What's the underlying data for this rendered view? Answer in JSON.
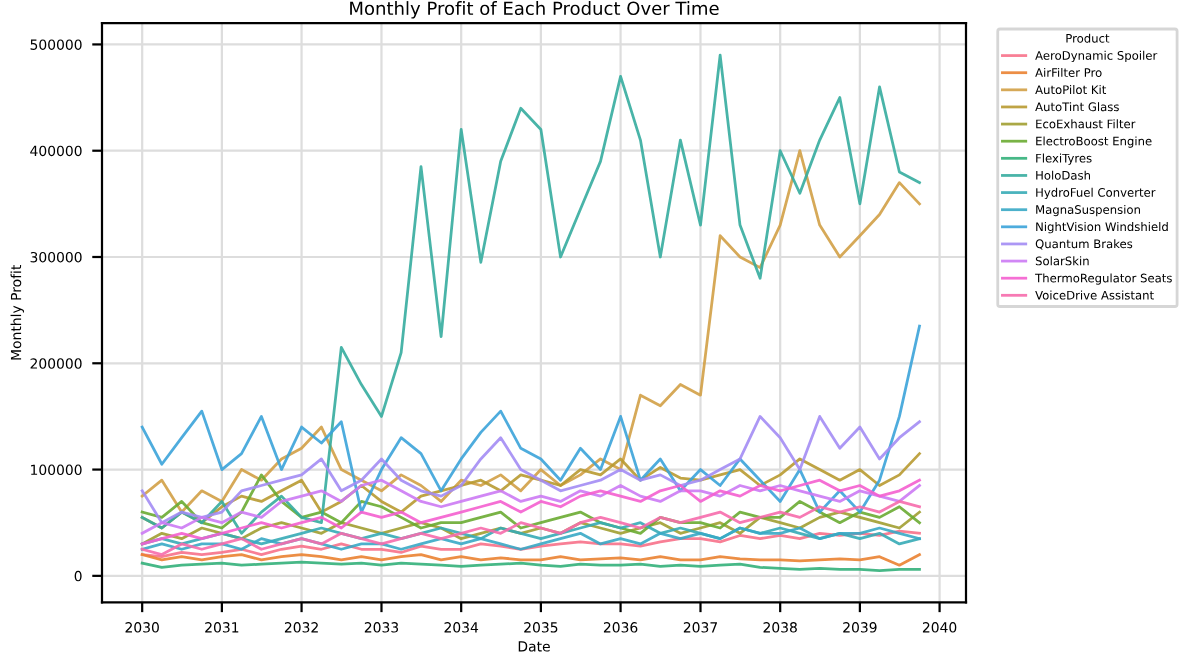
{
  "chart_data": {
    "type": "line",
    "title": "Monthly Profit of Each Product Over Time",
    "xlabel": "Date",
    "ylabel": "Monthly Profit",
    "legend_title": "Product",
    "legend": "right",
    "grid": true,
    "line_style": "solid",
    "x": [
      "2030-01",
      "2030-04",
      "2030-07",
      "2030-10",
      "2031-01",
      "2031-04",
      "2031-07",
      "2031-10",
      "2032-01",
      "2032-04",
      "2032-07",
      "2032-10",
      "2033-01",
      "2033-04",
      "2033-07",
      "2033-10",
      "2034-01",
      "2034-04",
      "2034-07",
      "2034-10",
      "2035-01",
      "2035-04",
      "2035-07",
      "2035-10",
      "2036-01",
      "2036-04",
      "2036-07",
      "2036-10",
      "2037-01",
      "2037-04",
      "2037-07",
      "2037-10",
      "2038-01",
      "2038-04",
      "2038-07",
      "2038-10",
      "2039-01",
      "2039-04",
      "2039-07",
      "2039-10"
    ],
    "xlim": [
      "2029-07",
      "2040-05"
    ],
    "xticks": [
      {
        "value": "2030-01",
        "label": "2030"
      },
      {
        "value": "2031-01",
        "label": "2031"
      },
      {
        "value": "2032-01",
        "label": "2032"
      },
      {
        "value": "2033-01",
        "label": "2033"
      },
      {
        "value": "2034-01",
        "label": "2034"
      },
      {
        "value": "2035-01",
        "label": "2035"
      },
      {
        "value": "2036-01",
        "label": "2036"
      },
      {
        "value": "2037-01",
        "label": "2037"
      },
      {
        "value": "2038-01",
        "label": "2038"
      },
      {
        "value": "2039-01",
        "label": "2039"
      },
      {
        "value": "2040-01",
        "label": "2040"
      }
    ],
    "ylim": [
      -25000,
      520000
    ],
    "yticks": [
      0,
      100000,
      200000,
      300000,
      400000,
      500000
    ],
    "series": [
      {
        "name": "AeroDynamic Spoiler",
        "color": "#f77189",
        "values": [
          20000,
          18000,
          22000,
          20000,
          22000,
          25000,
          20000,
          25000,
          28000,
          25000,
          30000,
          25000,
          25000,
          22000,
          28000,
          25000,
          25000,
          30000,
          28000,
          25000,
          28000,
          30000,
          32000,
          30000,
          30000,
          28000,
          32000,
          35000,
          35000,
          32000,
          38000,
          35000,
          38000,
          35000,
          40000,
          38000,
          40000,
          38000,
          42000,
          40000
        ]
      },
      {
        "name": "AirFilter Pro",
        "color": "#ea8231",
        "values": [
          20000,
          15000,
          18000,
          15000,
          18000,
          20000,
          15000,
          18000,
          20000,
          18000,
          15000,
          18000,
          15000,
          18000,
          20000,
          15000,
          18000,
          15000,
          17000,
          15000,
          15000,
          18000,
          15000,
          16000,
          17000,
          15000,
          18000,
          15000,
          15000,
          18000,
          16000,
          15000,
          15000,
          14000,
          15000,
          16000,
          15000,
          18000,
          10000,
          20000
        ]
      },
      {
        "name": "AutoPilot Kit",
        "color": "#d1a046",
        "values": [
          75000,
          90000,
          60000,
          80000,
          70000,
          100000,
          90000,
          110000,
          120000,
          140000,
          100000,
          90000,
          80000,
          95000,
          85000,
          70000,
          90000,
          85000,
          95000,
          80000,
          100000,
          85000,
          95000,
          110000,
          100000,
          170000,
          160000,
          180000,
          170000,
          320000,
          300000,
          290000,
          330000,
          400000,
          330000,
          300000,
          320000,
          340000,
          370000,
          350000
        ]
      },
      {
        "name": "AutoTint Glass",
        "color": "#b89a31",
        "values": [
          55000,
          45000,
          60000,
          50000,
          65000,
          75000,
          70000,
          80000,
          90000,
          60000,
          70000,
          85000,
          70000,
          60000,
          75000,
          80000,
          85000,
          90000,
          80000,
          95000,
          90000,
          85000,
          100000,
          95000,
          110000,
          90000,
          102000,
          92000,
          90000,
          95000,
          100000,
          85000,
          95000,
          110000,
          100000,
          90000,
          100000,
          85000,
          95000,
          115000
        ]
      },
      {
        "name": "EcoExhaust Filter",
        "color": "#a19f31",
        "values": [
          30000,
          40000,
          35000,
          45000,
          40000,
          35000,
          45000,
          50000,
          45000,
          40000,
          50000,
          45000,
          40000,
          45000,
          50000,
          45000,
          35000,
          40000,
          45000,
          40000,
          45000,
          40000,
          50000,
          45000,
          40000,
          45000,
          50000,
          40000,
          45000,
          50000,
          40000,
          55000,
          50000,
          45000,
          55000,
          60000,
          55000,
          50000,
          45000,
          60000
        ]
      },
      {
        "name": "ElectroBoost Engine",
        "color": "#6aab32",
        "values": [
          60000,
          55000,
          70000,
          50000,
          45000,
          60000,
          95000,
          70000,
          55000,
          60000,
          50000,
          70000,
          65000,
          55000,
          45000,
          50000,
          50000,
          55000,
          60000,
          45000,
          50000,
          55000,
          60000,
          50000,
          45000,
          40000,
          55000,
          50000,
          50000,
          45000,
          60000,
          55000,
          55000,
          70000,
          60000,
          50000,
          60000,
          55000,
          65000,
          50000
        ]
      },
      {
        "name": "FlexiTyres",
        "color": "#33b07a",
        "values": [
          12000,
          8000,
          10000,
          11000,
          12000,
          10000,
          11000,
          12000,
          13000,
          12000,
          11000,
          12000,
          10000,
          12000,
          11000,
          10000,
          9000,
          10000,
          11000,
          12000,
          10000,
          9000,
          11000,
          10000,
          10000,
          11000,
          9000,
          10000,
          9000,
          10000,
          11000,
          8000,
          7000,
          6000,
          7000,
          6000,
          6000,
          5000,
          6000,
          6000
        ]
      },
      {
        "name": "HoloDash",
        "color": "#35ac9e",
        "values": [
          55000,
          45000,
          60000,
          50000,
          70000,
          40000,
          60000,
          75000,
          55000,
          50000,
          215000,
          180000,
          150000,
          210000,
          385000,
          225000,
          420000,
          295000,
          390000,
          440000,
          420000,
          300000,
          345000,
          390000,
          470000,
          410000,
          300000,
          410000,
          330000,
          490000,
          330000,
          280000,
          400000,
          360000,
          410000,
          450000,
          350000,
          460000,
          380000,
          370000
        ]
      },
      {
        "name": "HydroFuel Converter",
        "color": "#36abb6",
        "values": [
          30000,
          35000,
          30000,
          35000,
          40000,
          35000,
          30000,
          35000,
          40000,
          45000,
          40000,
          35000,
          40000,
          35000,
          40000,
          45000,
          40000,
          35000,
          45000,
          40000,
          35000,
          40000,
          45000,
          50000,
          45000,
          50000,
          40000,
          45000,
          40000,
          35000,
          45000,
          40000,
          45000,
          40000,
          35000,
          40000,
          35000,
          40000,
          30000,
          35000
        ]
      },
      {
        "name": "MagnaSuspension",
        "color": "#38a8c5",
        "values": [
          25000,
          30000,
          25000,
          30000,
          30000,
          25000,
          35000,
          30000,
          35000,
          30000,
          25000,
          30000,
          30000,
          25000,
          30000,
          35000,
          30000,
          35000,
          30000,
          25000,
          30000,
          35000,
          40000,
          30000,
          35000,
          30000,
          40000,
          35000,
          40000,
          35000,
          45000,
          40000,
          40000,
          45000,
          35000,
          40000,
          40000,
          45000,
          40000,
          35000
        ]
      },
      {
        "name": "NightVision Windshield",
        "color": "#3ba3d9",
        "values": [
          140000,
          105000,
          130000,
          155000,
          100000,
          115000,
          150000,
          100000,
          140000,
          125000,
          145000,
          60000,
          100000,
          130000,
          115000,
          80000,
          110000,
          135000,
          155000,
          120000,
          110000,
          90000,
          120000,
          100000,
          150000,
          90000,
          110000,
          80000,
          100000,
          85000,
          110000,
          90000,
          70000,
          100000,
          60000,
          80000,
          60000,
          90000,
          150000,
          235000
        ]
      },
      {
        "name": "Quantum Brakes",
        "color": "#a38cf4",
        "values": [
          80000,
          50000,
          60000,
          55000,
          60000,
          80000,
          85000,
          90000,
          95000,
          110000,
          80000,
          90000,
          110000,
          90000,
          80000,
          75000,
          85000,
          110000,
          130000,
          100000,
          90000,
          80000,
          85000,
          90000,
          100000,
          90000,
          95000,
          85000,
          90000,
          100000,
          110000,
          150000,
          130000,
          100000,
          150000,
          120000,
          140000,
          110000,
          130000,
          145000
        ]
      },
      {
        "name": "SolarSkin",
        "color": "#cc7af4",
        "values": [
          40000,
          50000,
          45000,
          55000,
          50000,
          60000,
          55000,
          70000,
          75000,
          80000,
          70000,
          85000,
          90000,
          80000,
          70000,
          65000,
          70000,
          75000,
          80000,
          70000,
          75000,
          70000,
          80000,
          75000,
          85000,
          75000,
          70000,
          80000,
          80000,
          75000,
          85000,
          80000,
          85000,
          80000,
          75000,
          70000,
          80000,
          75000,
          70000,
          85000
        ]
      },
      {
        "name": "ThermoRegulator Seats",
        "color": "#f45fcf",
        "values": [
          30000,
          35000,
          40000,
          35000,
          40000,
          45000,
          50000,
          45000,
          50000,
          55000,
          45000,
          60000,
          55000,
          60000,
          50000,
          55000,
          60000,
          65000,
          70000,
          60000,
          70000,
          65000,
          75000,
          80000,
          75000,
          70000,
          80000,
          85000,
          70000,
          80000,
          75000,
          85000,
          80000,
          85000,
          90000,
          80000,
          85000,
          75000,
          80000,
          90000
        ]
      },
      {
        "name": "VoiceDrive Assistant",
        "color": "#f66bac",
        "values": [
          25000,
          20000,
          30000,
          25000,
          30000,
          35000,
          25000,
          30000,
          35000,
          30000,
          40000,
          35000,
          30000,
          35000,
          40000,
          35000,
          40000,
          45000,
          40000,
          50000,
          45000,
          40000,
          50000,
          55000,
          50000,
          45000,
          55000,
          50000,
          55000,
          60000,
          50000,
          55000,
          60000,
          55000,
          65000,
          60000,
          65000,
          60000,
          70000,
          65000
        ]
      }
    ]
  }
}
